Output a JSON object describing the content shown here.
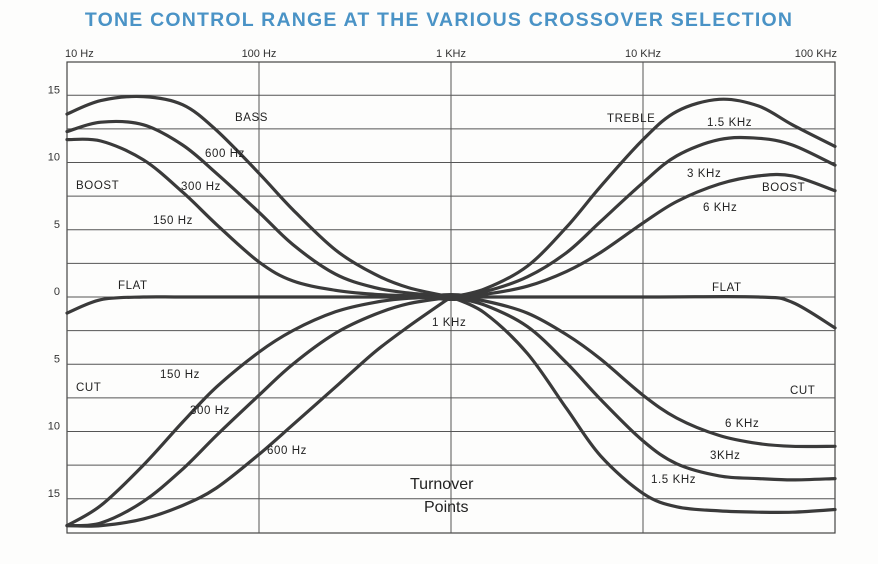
{
  "chart_data": {
    "type": "line",
    "title": "TONE CONTROL RANGE AT THE VARIOUS CROSSOVER SELECTION",
    "x_scale": "log",
    "xlim": [
      10,
      100000
    ],
    "ylim": [
      -17,
      17
    ],
    "grid": true,
    "x_ticks": [
      {
        "value": 10,
        "label": "10 Hz"
      },
      {
        "value": 100,
        "label": "100 Hz"
      },
      {
        "value": 1000,
        "label": "1 KHz"
      },
      {
        "value": 10000,
        "label": "10 KHz"
      },
      {
        "value": 100000,
        "label": "100 KHz"
      }
    ],
    "y_ticks": [
      {
        "value": 15,
        "label": "15"
      },
      {
        "value": 10,
        "label": "10"
      },
      {
        "value": 5,
        "label": "5"
      },
      {
        "value": 0,
        "label": "0"
      },
      {
        "value": -5,
        "label": "5"
      },
      {
        "value": -10,
        "label": "10"
      },
      {
        "value": -15,
        "label": "15"
      }
    ],
    "series": [
      {
        "name": "600 Hz",
        "x": [
          10,
          15,
          25,
          40,
          60,
          100,
          150,
          250,
          400,
          600,
          1000
        ],
        "y": [
          13.6,
          14.6,
          14.9,
          14.3,
          12.4,
          9.2,
          6.5,
          3.5,
          1.7,
          0.7,
          0
        ]
      },
      {
        "name": "300 Hz",
        "x": [
          10,
          15,
          25,
          40,
          60,
          100,
          150,
          250,
          400,
          600,
          1000
        ],
        "y": [
          12.3,
          13.0,
          12.8,
          11.3,
          9.2,
          6.3,
          3.9,
          1.7,
          0.7,
          0.3,
          0
        ]
      },
      {
        "name": "150 Hz",
        "x": [
          10,
          15,
          25,
          40,
          60,
          100,
          150,
          250,
          400,
          600,
          1000
        ],
        "y": [
          11.7,
          11.6,
          10.2,
          7.8,
          5.4,
          2.6,
          1.2,
          0.5,
          0.2,
          0.1,
          0
        ]
      },
      {
        "name": "1.5 KHz",
        "x": [
          1000,
          1500,
          2500,
          4000,
          6000,
          10000,
          15000,
          25000,
          40000,
          60000,
          100000
        ],
        "y": [
          0,
          0.6,
          2.3,
          5.2,
          8.2,
          11.7,
          13.8,
          14.7,
          14.2,
          12.8,
          11.2
        ]
      },
      {
        "name": "3 KHz",
        "x": [
          1000,
          1500,
          2500,
          4000,
          6000,
          10000,
          15000,
          25000,
          40000,
          60000,
          100000
        ],
        "y": [
          0,
          0.4,
          1.5,
          3.3,
          5.6,
          8.5,
          10.5,
          11.7,
          11.8,
          11.3,
          9.8
        ]
      },
      {
        "name": "6 KHz",
        "x": [
          1000,
          1500,
          2500,
          4000,
          6000,
          10000,
          15000,
          25000,
          40000,
          60000,
          100000
        ],
        "y": [
          0,
          0.2,
          0.8,
          1.9,
          3.3,
          5.5,
          7.1,
          8.4,
          9.0,
          9.0,
          7.9
        ]
      },
      {
        "name": "FLAT",
        "x": [
          10,
          15,
          25,
          40,
          100,
          1000,
          10000,
          40000,
          60000,
          100000
        ],
        "y": [
          -1.2,
          -0.2,
          0,
          0,
          0,
          0,
          0,
          0,
          -0.4,
          -2.3
        ]
      },
      {
        "name": "150 Hz",
        "x": [
          10,
          15,
          25,
          40,
          60,
          100,
          150,
          250,
          400,
          600,
          1000
        ],
        "y": [
          -17,
          -15.5,
          -12.5,
          -9.3,
          -6.7,
          -4.1,
          -2.5,
          -1.1,
          -0.4,
          -0.1,
          0
        ]
      },
      {
        "name": "300 Hz",
        "x": [
          10,
          15,
          25,
          40,
          60,
          100,
          150,
          250,
          400,
          600,
          1000
        ],
        "y": [
          -17,
          -16.8,
          -15.2,
          -12.8,
          -10.3,
          -7.3,
          -5.0,
          -2.7,
          -1.3,
          -0.5,
          0
        ]
      },
      {
        "name": "600 Hz",
        "x": [
          10,
          15,
          25,
          40,
          60,
          100,
          150,
          250,
          400,
          600,
          1000
        ],
        "y": [
          -17,
          -17,
          -16.5,
          -15.5,
          -14.2,
          -11.7,
          -9.5,
          -6.7,
          -4.1,
          -2.2,
          0
        ]
      },
      {
        "name": "6 KHz",
        "x": [
          1000,
          1500,
          2500,
          4000,
          6000,
          10000,
          15000,
          25000,
          40000,
          60000,
          100000
        ],
        "y": [
          0,
          -0.3,
          -1.2,
          -2.8,
          -4.6,
          -7.3,
          -9.0,
          -10.3,
          -10.9,
          -11.1,
          -11.1
        ]
      },
      {
        "name": "3KHz",
        "x": [
          1000,
          1500,
          2500,
          4000,
          6000,
          10000,
          15000,
          25000,
          40000,
          60000,
          100000
        ],
        "y": [
          0,
          -0.6,
          -2.2,
          -4.9,
          -7.6,
          -10.7,
          -12.4,
          -13.3,
          -13.5,
          -13.6,
          -13.5
        ]
      },
      {
        "name": "1.5 KHz",
        "x": [
          1000,
          1500,
          2500,
          4000,
          6000,
          10000,
          15000,
          25000,
          40000,
          60000,
          100000
        ],
        "y": [
          0,
          -1.2,
          -4.2,
          -8.3,
          -11.8,
          -14.6,
          -15.6,
          -15.9,
          -16.0,
          -16.0,
          -15.8
        ]
      }
    ],
    "annotations": {
      "bass": "BASS",
      "treble": "TREBLE",
      "boost_left": "BOOST",
      "boost_right": "BOOST",
      "cut_left": "CUT",
      "cut_right": "CUT",
      "flat_left": "FLAT",
      "flat_right": "FLAT",
      "center_freq": "1 KHz",
      "turnover_line1": "Turnover",
      "turnover_line2": "Points",
      "boost_600": "600 Hz",
      "boost_300": "300 Hz",
      "boost_150": "150 Hz",
      "boost_1_5k": "1.5 KHz",
      "boost_3k": "3 KHz",
      "boost_6k": "6 KHz",
      "cut_150": "150 Hz",
      "cut_300": "300 Hz",
      "cut_600": "600 Hz",
      "cut_6k": "6 KHz",
      "cut_3k": "3KHz",
      "cut_1_5k": "1.5 KHz"
    },
    "line_color": "#3a3a3a",
    "title_color": "#4a93c6"
  }
}
